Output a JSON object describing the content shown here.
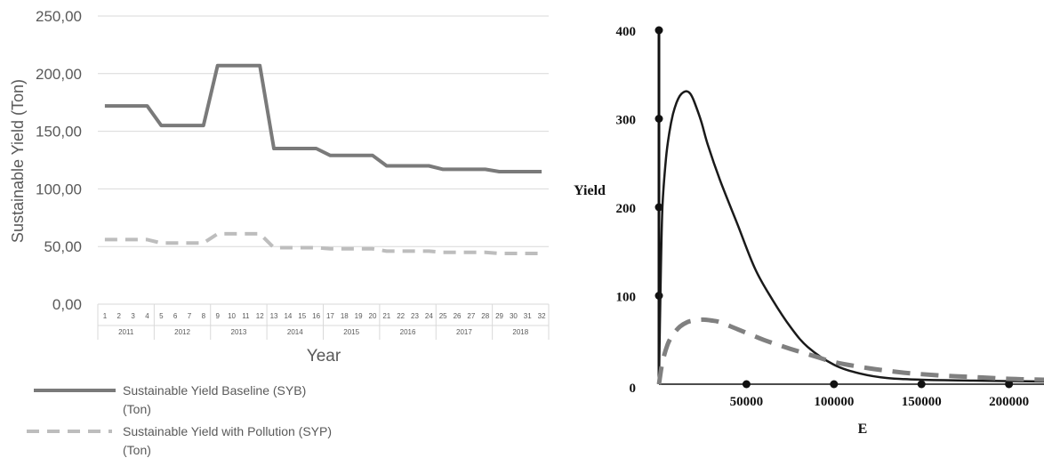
{
  "chart_data": [
    {
      "type": "line",
      "title": "",
      "ylabel": "Sustainable Yield (Ton)",
      "xlabel": "Year",
      "ylim": [
        0,
        250
      ],
      "y_ticks": [
        "0,00",
        "50,00",
        "100,00",
        "150,00",
        "200,00",
        "250,00"
      ],
      "x": [
        1,
        2,
        3,
        4,
        5,
        6,
        7,
        8,
        9,
        10,
        11,
        12,
        13,
        14,
        15,
        16,
        17,
        18,
        19,
        20,
        21,
        22,
        23,
        24,
        25,
        26,
        27,
        28,
        29,
        30,
        31,
        32
      ],
      "years": [
        "2011",
        "2012",
        "2013",
        "2014",
        "2015",
        "2016",
        "2017",
        "2018"
      ],
      "grid": true,
      "legend_position": "bottom-left",
      "series": [
        {
          "name": "Sustainable Yield Baseline (SYB) (Ton)",
          "color": "#7a7a7a",
          "style": "solid",
          "values": [
            172,
            172,
            172,
            172,
            155,
            155,
            155,
            155,
            207,
            207,
            207,
            207,
            135,
            135,
            135,
            135,
            129,
            129,
            129,
            129,
            120,
            120,
            120,
            120,
            117,
            117,
            117,
            117,
            115,
            115,
            115,
            115
          ]
        },
        {
          "name": "Sustainable Yield with Pollution (SYP) (Ton)",
          "color": "#bdbdbd",
          "style": "dashed",
          "values": [
            56,
            56,
            56,
            56,
            53,
            53,
            53,
            53,
            61,
            61,
            61,
            61,
            49,
            49,
            49,
            49,
            48,
            48,
            48,
            48,
            46,
            46,
            46,
            46,
            45,
            45,
            45,
            45,
            44,
            44,
            44,
            44
          ]
        }
      ]
    },
    {
      "type": "line",
      "title": "",
      "xlabel": "E",
      "ylabel": "Yield",
      "xlim": [
        0,
        220000
      ],
      "ylim": [
        0,
        400
      ],
      "x_ticks": [
        "50000",
        "100000",
        "150000",
        "200000"
      ],
      "y_ticks": [
        "0",
        "100",
        "200",
        "300",
        "400"
      ],
      "grid": false,
      "series": [
        {
          "style": "solid",
          "color": "#1a1a1a",
          "x": [
            0,
            1000,
            2000,
            4000,
            6000,
            8000,
            10000,
            12000,
            14000,
            16000,
            18000,
            20000,
            24000,
            28000,
            35000,
            45000,
            55000,
            65000,
            75000,
            85000,
            100000,
            115000,
            130000,
            150000,
            180000,
            220000
          ],
          "y": [
            0,
            120,
            200,
            255,
            285,
            305,
            318,
            326,
            330,
            331,
            328,
            320,
            298,
            270,
            230,
            180,
            130,
            95,
            65,
            42,
            22,
            12,
            7,
            5,
            4,
            3
          ]
        },
        {
          "style": "dashed",
          "color": "#808080",
          "x": [
            0,
            2000,
            5000,
            8000,
            12000,
            16000,
            20000,
            25000,
            30000,
            35000,
            45000,
            60000,
            75000,
            90000,
            100000,
            120000,
            140000,
            160000,
            180000,
            200000,
            220000
          ],
          "y": [
            0,
            25,
            45,
            56,
            65,
            70,
            72,
            73,
            72,
            70,
            62,
            50,
            40,
            31,
            25,
            18,
            13,
            10,
            8,
            6,
            5
          ]
        }
      ]
    }
  ]
}
